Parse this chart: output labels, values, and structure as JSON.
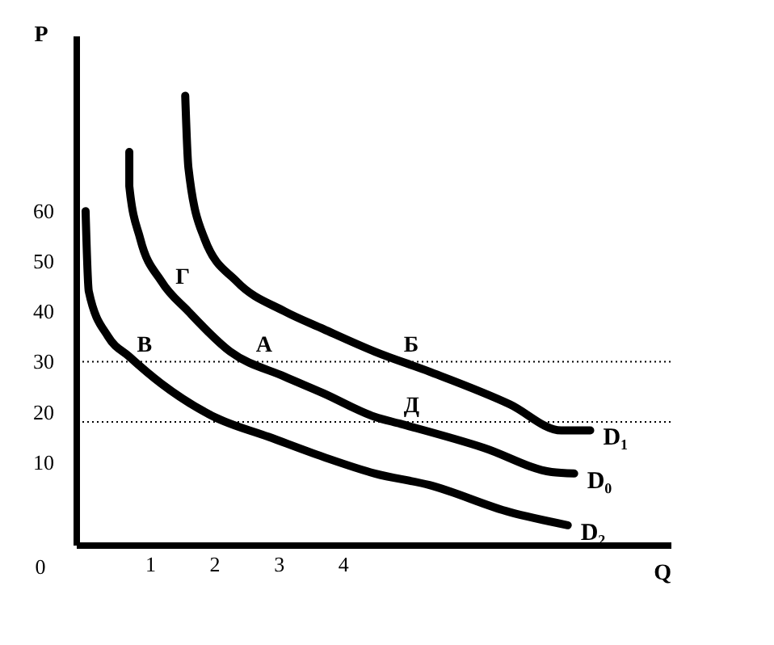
{
  "chart_data": {
    "type": "line",
    "xlabel": "Q",
    "ylabel": "P",
    "xlim": [
      -0.15,
      9.1
    ],
    "ylim": [
      -6.5,
      95
    ],
    "xticks": [
      1,
      2,
      3,
      4
    ],
    "yticks": [
      10,
      20,
      30,
      40,
      50,
      60
    ],
    "grid": false,
    "marker": "none",
    "line_style": "solid",
    "series": [
      {
        "name": "D₁",
        "color": "#000000",
        "x": [
          1.55,
          1.6,
          1.85,
          2.35,
          3.1,
          3.7,
          4.5,
          5.35,
          6.6,
          7.4,
          7.85
        ],
        "values": [
          83,
          68.6,
          54.5,
          46,
          40,
          36.5,
          32,
          28,
          21.5,
          16.3,
          16.3
        ]
      },
      {
        "name": "D₀",
        "color": "#000000",
        "x": [
          0.68,
          0.68,
          0.85,
          1.18,
          1.6,
          2.25,
          3.1,
          3.7,
          4.5,
          4.9,
          6.2,
          7.25,
          7.6
        ],
        "values": [
          71.8,
          65,
          54.5,
          46,
          40,
          32,
          27,
          23.7,
          19,
          17.6,
          12.8,
          8,
          7.7
        ]
      },
      {
        "name": "D₂",
        "color": "#000000",
        "x": [
          0,
          0.05,
          0.35,
          0.68,
          1.18,
          2,
          2.85,
          3.7,
          4.5,
          5.35,
          6.6,
          7.5
        ],
        "values": [
          60,
          44,
          35,
          31,
          25.6,
          19,
          15,
          11,
          7.7,
          5.4,
          0,
          -2.6
        ]
      }
    ],
    "ref_lines": [
      {
        "axis": "y",
        "value": 30,
        "line_style": "dotted"
      },
      {
        "axis": "y",
        "value": 18,
        "line_style": "dotted"
      }
    ],
    "annotations": [
      {
        "text": "В",
        "x": 0.75,
        "y": 30
      },
      {
        "text": "Г",
        "x": 1.35,
        "y": 43.6
      },
      {
        "text": "А",
        "x": 2.6,
        "y": 30
      },
      {
        "text": "Б",
        "x": 4.9,
        "y": 30
      },
      {
        "text": "Д",
        "x": 4.9,
        "y": 18
      },
      "0"
    ]
  }
}
